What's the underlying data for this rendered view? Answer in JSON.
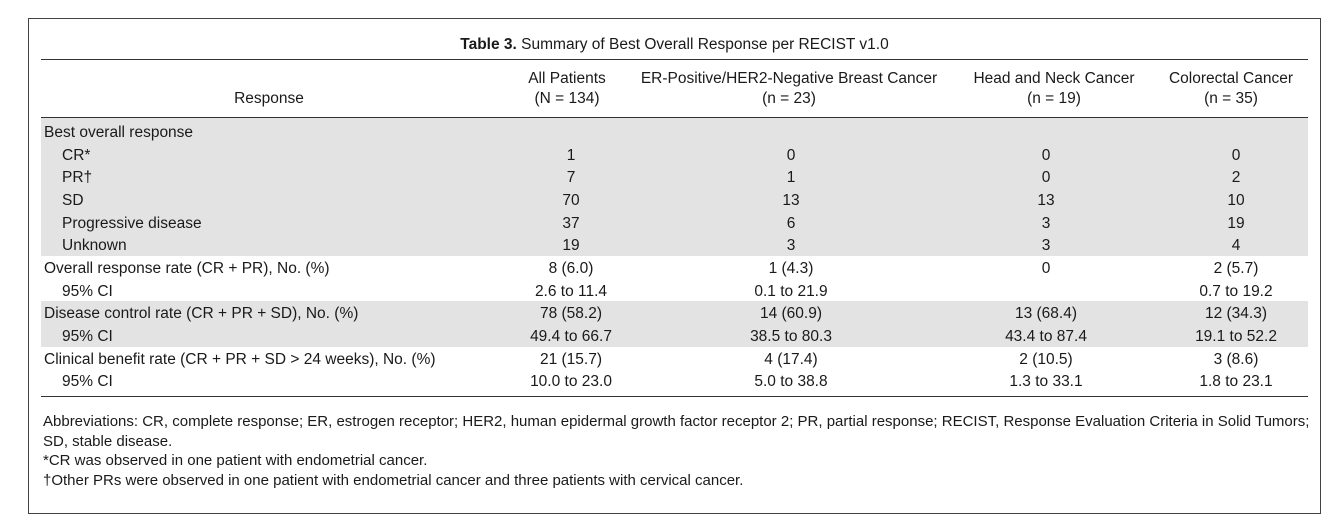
{
  "table": {
    "title_bold": "Table 3.",
    "title_rest": " Summary of Best Overall Response per RECIST v1.0",
    "columns": [
      {
        "name": "Response",
        "n": ""
      },
      {
        "name": "All Patients",
        "n": "(N = 134)"
      },
      {
        "name": "ER-Positive/HER2-Negative Breast Cancer",
        "n": "(n = 23)"
      },
      {
        "name": "Head and Neck Cancer",
        "n": "(n = 19)"
      },
      {
        "name": "Colorectal Cancer",
        "n": "(n = 35)"
      }
    ],
    "rows": [
      {
        "label": "Best overall response",
        "v": [
          "",
          "",
          "",
          ""
        ]
      },
      {
        "label": "CR*",
        "v": [
          "1",
          "0",
          "0",
          "0"
        ]
      },
      {
        "label": "PR†",
        "v": [
          "7",
          "1",
          "0",
          "2"
        ]
      },
      {
        "label": "SD",
        "v": [
          "70",
          "13",
          "13",
          "10"
        ]
      },
      {
        "label": "Progressive disease",
        "v": [
          "37",
          "6",
          "3",
          "19"
        ]
      },
      {
        "label": "Unknown",
        "v": [
          "19",
          "3",
          "3",
          "4"
        ]
      },
      {
        "label": "Overall response rate (CR + PR), No. (%)",
        "v": [
          "8 (6.0)",
          "1 (4.3)",
          "0",
          "2 (5.7)"
        ]
      },
      {
        "label": "95% CI",
        "v": [
          "2.6 to 11.4",
          "0.1 to 21.9",
          "",
          "0.7 to 19.2"
        ]
      },
      {
        "label": "Disease control rate (CR + PR + SD), No. (%)",
        "v": [
          "78 (58.2)",
          "14 (60.9)",
          "13 (68.4)",
          "12 (34.3)"
        ]
      },
      {
        "label": "95% CI",
        "v": [
          "49.4 to 66.7",
          "38.5 to 80.3",
          "43.4 to 87.4",
          "19.1 to 52.2"
        ]
      },
      {
        "label": "Clinical benefit rate (CR + PR + SD > 24 weeks), No. (%)",
        "v": [
          "21 (15.7)",
          "4 (17.4)",
          "2 (10.5)",
          "3 (8.6)"
        ]
      },
      {
        "label": "95% CI",
        "v": [
          "10.0 to 23.0",
          "5.0 to 38.8",
          "1.3 to 33.1",
          "1.8 to 23.1"
        ]
      }
    ],
    "footnotes": [
      "Abbreviations: CR, complete response; ER, estrogen receptor; HER2, human epidermal growth factor receptor 2; PR, partial response; RECIST, Response Evaluation Criteria in Solid Tumors; SD, stable disease.",
      "*CR was observed in one patient with endometrial cancer.",
      "†Other PRs were observed in one patient with endometrial cancer and three patients with cervical cancer."
    ]
  }
}
